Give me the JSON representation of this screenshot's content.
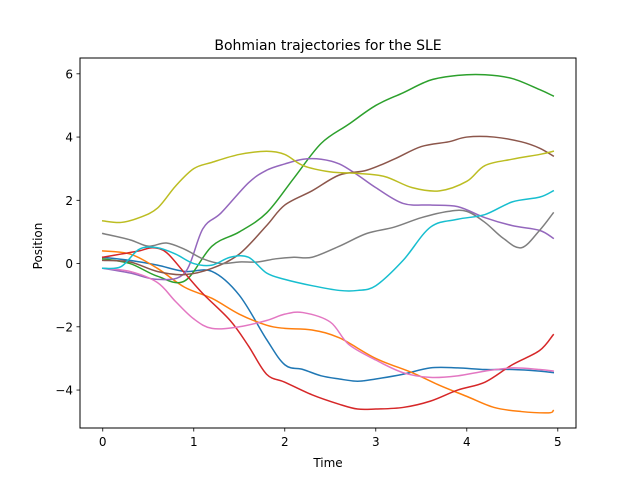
{
  "chart_data": {
    "type": "line",
    "title": "Bohmian trajectories for the SLE",
    "xlabel": "Time",
    "ylabel": "Position",
    "xlim": [
      -0.25,
      5.2
    ],
    "ylim": [
      -5.2,
      6.5
    ],
    "xticks": [
      0,
      1,
      2,
      3,
      4,
      5
    ],
    "yticks": [
      -4,
      -2,
      0,
      2,
      4,
      6
    ],
    "grid": false,
    "legend": "none",
    "series": [
      {
        "color": "#1f77b4",
        "x": [
          0,
          0.3,
          0.6,
          0.9,
          1.2,
          1.5,
          1.8,
          2.0,
          2.2,
          2.4,
          2.6,
          2.8,
          3.0,
          3.3,
          3.6,
          3.9,
          4.2,
          4.5,
          4.8,
          4.95
        ],
        "y": [
          0.2,
          0.1,
          -0.05,
          -0.25,
          -0.25,
          -1.0,
          -2.4,
          -3.2,
          -3.35,
          -3.55,
          -3.65,
          -3.72,
          -3.65,
          -3.5,
          -3.3,
          -3.3,
          -3.35,
          -3.35,
          -3.4,
          -3.45
        ]
      },
      {
        "color": "#ff7f0e",
        "x": [
          0,
          0.3,
          0.6,
          0.9,
          1.2,
          1.5,
          1.8,
          2.0,
          2.3,
          2.6,
          3.0,
          3.4,
          3.7,
          4.0,
          4.3,
          4.6,
          4.9,
          4.95
        ],
        "y": [
          0.4,
          0.3,
          -0.15,
          -0.75,
          -1.1,
          -1.6,
          -1.95,
          -2.05,
          -2.1,
          -2.35,
          -3.0,
          -3.45,
          -3.85,
          -4.2,
          -4.55,
          -4.68,
          -4.72,
          -4.65
        ]
      },
      {
        "color": "#2ca02c",
        "x": [
          0,
          0.3,
          0.6,
          0.9,
          1.2,
          1.5,
          1.8,
          2.1,
          2.4,
          2.7,
          3.0,
          3.3,
          3.6,
          3.9,
          4.2,
          4.5,
          4.8,
          4.95
        ],
        "y": [
          0.15,
          0.0,
          -0.4,
          -0.55,
          0.55,
          1.0,
          1.6,
          2.7,
          3.8,
          4.4,
          5.0,
          5.4,
          5.8,
          5.95,
          5.97,
          5.85,
          5.5,
          5.3
        ]
      },
      {
        "color": "#d62728",
        "x": [
          0,
          0.2,
          0.4,
          0.55,
          0.7,
          0.9,
          1.1,
          1.4,
          1.6,
          1.8,
          2.0,
          2.3,
          2.6,
          2.8,
          3.0,
          3.3,
          3.6,
          3.9,
          4.2,
          4.5,
          4.8,
          4.95
        ],
        "y": [
          0.2,
          0.3,
          0.4,
          0.5,
          0.35,
          -0.3,
          -0.95,
          -1.8,
          -2.6,
          -3.5,
          -3.75,
          -4.15,
          -4.45,
          -4.6,
          -4.6,
          -4.55,
          -4.35,
          -4.0,
          -3.75,
          -3.2,
          -2.75,
          -2.25
        ]
      },
      {
        "color": "#9467bd",
        "x": [
          0,
          0.3,
          0.6,
          0.9,
          1.1,
          1.3,
          1.6,
          1.8,
          2.0,
          2.2,
          2.4,
          2.6,
          2.8,
          3.0,
          3.3,
          3.6,
          3.9,
          4.2,
          4.5,
          4.8,
          4.95
        ],
        "y": [
          -0.15,
          -0.3,
          -0.5,
          -0.3,
          1.1,
          1.6,
          2.55,
          2.95,
          3.15,
          3.3,
          3.3,
          3.15,
          2.8,
          2.4,
          1.9,
          1.85,
          1.8,
          1.45,
          1.2,
          1.05,
          0.8
        ]
      },
      {
        "color": "#8c564b",
        "x": [
          0,
          0.3,
          0.6,
          0.9,
          1.2,
          1.5,
          1.8,
          2.0,
          2.3,
          2.6,
          2.9,
          3.2,
          3.5,
          3.8,
          4.0,
          4.3,
          4.6,
          4.8,
          4.95
        ],
        "y": [
          0.1,
          0.05,
          -0.25,
          -0.35,
          -0.15,
          0.3,
          1.2,
          1.85,
          2.3,
          2.8,
          2.95,
          3.3,
          3.7,
          3.85,
          4.0,
          4.0,
          3.85,
          3.65,
          3.4
        ]
      },
      {
        "color": "#e377c2",
        "x": [
          0,
          0.3,
          0.6,
          0.8,
          1.0,
          1.2,
          1.5,
          1.8,
          2.0,
          2.2,
          2.5,
          2.7,
          3.0,
          3.3,
          3.6,
          3.9,
          4.2,
          4.5,
          4.8,
          4.95
        ],
        "y": [
          -0.15,
          -0.25,
          -0.6,
          -1.2,
          -1.75,
          -2.05,
          -2.0,
          -1.8,
          -1.6,
          -1.55,
          -1.85,
          -2.55,
          -3.05,
          -3.45,
          -3.6,
          -3.55,
          -3.4,
          -3.3,
          -3.35,
          -3.4
        ]
      },
      {
        "color": "#7f7f7f",
        "x": [
          0,
          0.3,
          0.5,
          0.7,
          0.9,
          1.1,
          1.3,
          1.5,
          1.7,
          1.9,
          2.1,
          2.3,
          2.6,
          2.9,
          3.2,
          3.5,
          3.8,
          4.0,
          4.2,
          4.4,
          4.6,
          4.8,
          4.95
        ],
        "y": [
          0.95,
          0.75,
          0.55,
          0.65,
          0.45,
          0.15,
          0.0,
          0.05,
          0.05,
          0.15,
          0.2,
          0.2,
          0.55,
          0.95,
          1.15,
          1.45,
          1.65,
          1.65,
          1.3,
          0.8,
          0.5,
          1.05,
          1.6
        ]
      },
      {
        "color": "#bcbd22",
        "x": [
          0,
          0.2,
          0.4,
          0.6,
          0.8,
          1.0,
          1.2,
          1.5,
          1.8,
          2.0,
          2.2,
          2.5,
          2.8,
          3.1,
          3.4,
          3.7,
          4.0,
          4.2,
          4.5,
          4.8,
          4.95
        ],
        "y": [
          1.35,
          1.3,
          1.45,
          1.75,
          2.45,
          3.0,
          3.2,
          3.45,
          3.55,
          3.45,
          3.1,
          2.9,
          2.85,
          2.75,
          2.4,
          2.3,
          2.6,
          3.1,
          3.3,
          3.45,
          3.55
        ]
      },
      {
        "color": "#17becf",
        "x": [
          0,
          0.2,
          0.4,
          0.6,
          0.8,
          1.0,
          1.2,
          1.4,
          1.6,
          1.8,
          2.0,
          2.3,
          2.6,
          2.8,
          3.0,
          3.3,
          3.6,
          3.9,
          4.2,
          4.5,
          4.8,
          4.95
        ],
        "y": [
          -0.15,
          -0.1,
          0.45,
          0.5,
          0.3,
          0.0,
          -0.05,
          0.2,
          0.2,
          -0.3,
          -0.5,
          -0.7,
          -0.85,
          -0.85,
          -0.7,
          0.1,
          1.15,
          1.4,
          1.55,
          1.95,
          2.1,
          2.3
        ]
      }
    ]
  }
}
